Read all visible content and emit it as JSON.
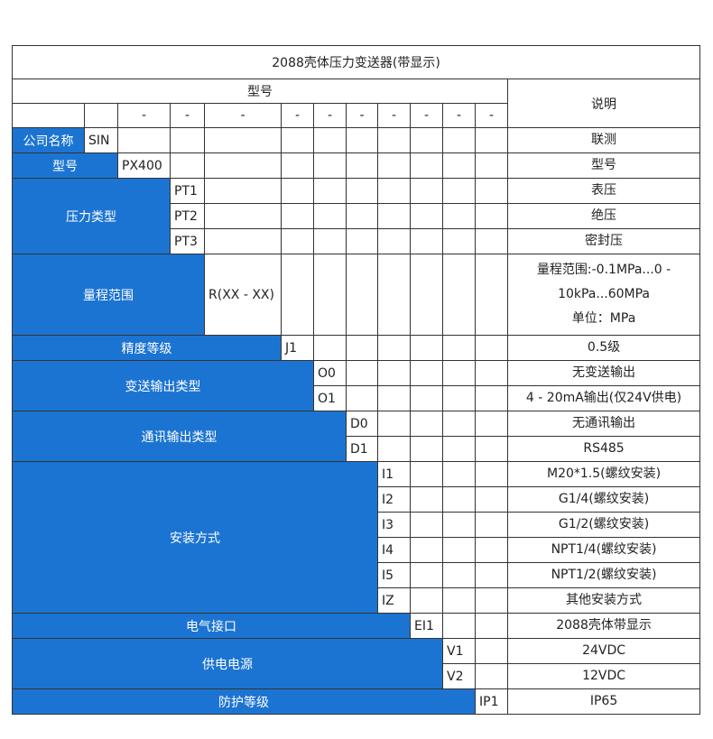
{
  "title": "2088壳体压力变送器(带显示)",
  "header": {
    "model": "型号",
    "desc": "说明"
  },
  "dash_row": [
    "-",
    "-",
    "-",
    "-",
    "-",
    "-",
    "-",
    "-",
    "-",
    "-"
  ],
  "sections": [
    {
      "label": "公司名称",
      "rows": [
        {
          "code": "SIN",
          "desc": [
            "联测"
          ]
        }
      ]
    },
    {
      "label": "型号",
      "rows": [
        {
          "code": "PX400",
          "desc": [
            "型号"
          ]
        }
      ]
    },
    {
      "label": "压力类型",
      "rows": [
        {
          "code": "PT1",
          "desc": [
            "表压"
          ]
        },
        {
          "code": "PT2",
          "desc": [
            "绝压"
          ]
        },
        {
          "code": "PT3",
          "desc": [
            "密封压"
          ]
        }
      ]
    },
    {
      "label": "量程范围",
      "rows": [
        {
          "code": "R(XX - XX)",
          "desc": [
            "量程范围:-0.1MPa...0 -",
            "10kPa...60MPa",
            "单位：MPa"
          ]
        }
      ]
    },
    {
      "label": "精度等级",
      "rows": [
        {
          "code": "J1",
          "desc": [
            "0.5级"
          ]
        }
      ]
    },
    {
      "label": "变送输出类型",
      "rows": [
        {
          "code": "O0",
          "desc": [
            "无变送输出"
          ]
        },
        {
          "code": "O1",
          "desc": [
            "4 - 20mA输出(仅24V供电)"
          ]
        }
      ]
    },
    {
      "label": "通讯输出类型",
      "rows": [
        {
          "code": "D0",
          "desc": [
            "无通讯输出"
          ]
        },
        {
          "code": "D1",
          "desc": [
            "RS485"
          ]
        }
      ]
    },
    {
      "label": "安装方式",
      "rows": [
        {
          "code": "I1",
          "desc": [
            "M20*1.5(螺纹安装)"
          ]
        },
        {
          "code": "I2",
          "desc": [
            "G1/4(螺纹安装)"
          ]
        },
        {
          "code": "I3",
          "desc": [
            "G1/2(螺纹安装)"
          ]
        },
        {
          "code": "I4",
          "desc": [
            "NPT1/4(螺纹安装)"
          ]
        },
        {
          "code": "I5",
          "desc": [
            "NPT1/2(螺纹安装)"
          ]
        },
        {
          "code": "IZ",
          "desc": [
            "其他安装方式"
          ]
        }
      ]
    },
    {
      "label": "电气接口",
      "rows": [
        {
          "code": "EI1",
          "desc": [
            "2088壳体带显示"
          ]
        }
      ]
    },
    {
      "label": "供电电源",
      "rows": [
        {
          "code": "V1",
          "desc": [
            "24VDC"
          ]
        },
        {
          "code": "V2",
          "desc": [
            "12VDC"
          ]
        }
      ]
    },
    {
      "label": "防护等级",
      "rows": [
        {
          "code": "IP1",
          "desc": [
            "IP65"
          ]
        }
      ]
    }
  ]
}
